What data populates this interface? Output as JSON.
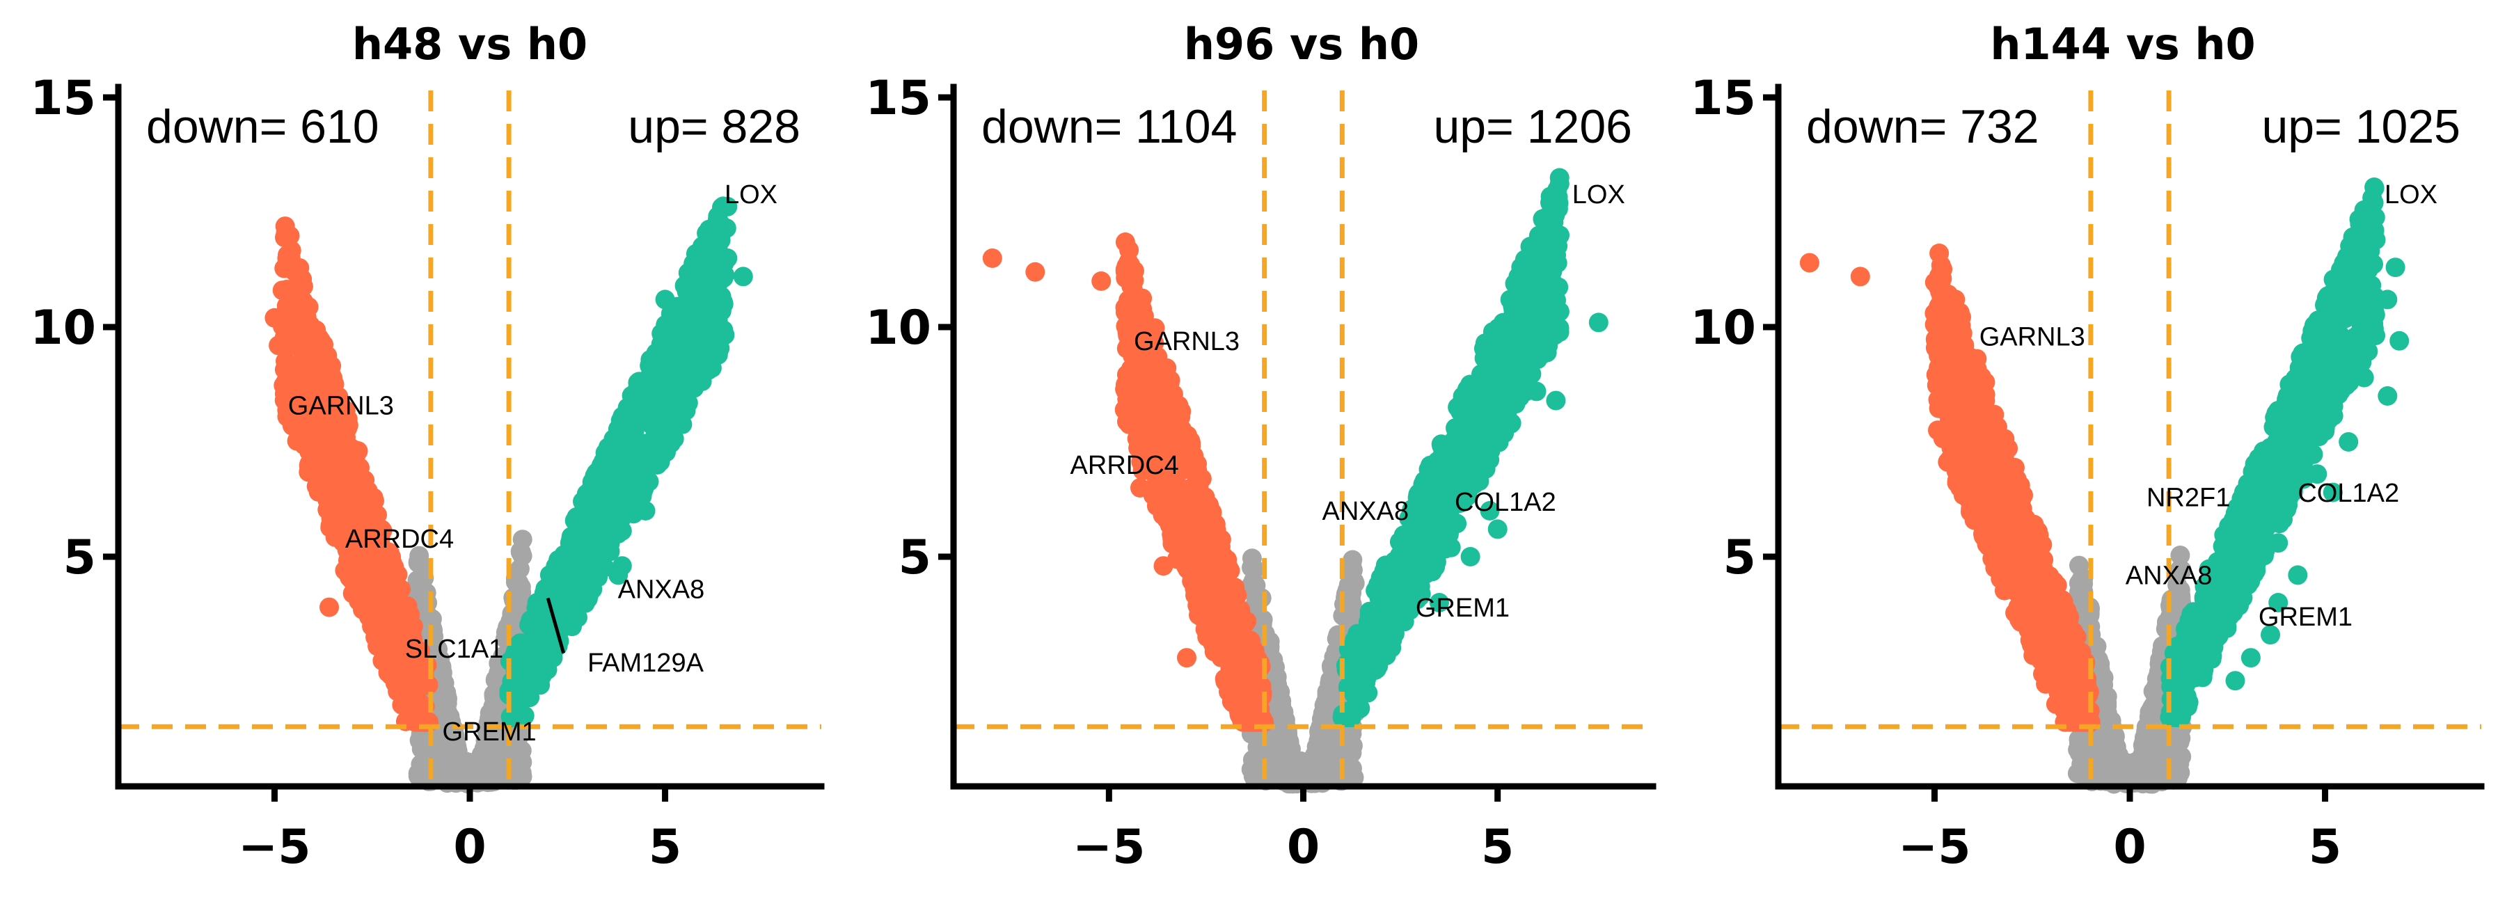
{
  "colors": {
    "down": "#ff6b42",
    "up": "#1dbf9a",
    "ns": "#a6a6a6",
    "threshold": "#f5a623",
    "axis": "#000000"
  },
  "chart_data": [
    {
      "type": "scatter",
      "title": "h48 vs h0",
      "xlabel": "",
      "ylabel": "",
      "xlim": [
        -9,
        9
      ],
      "ylim": [
        0,
        15
      ],
      "xticks": [
        -5,
        0,
        5
      ],
      "yticks": [
        5,
        10,
        15
      ],
      "grid": false,
      "thresholds": {
        "logfc": [
          -1,
          1
        ],
        "y": 1.3
      },
      "down_label": "down= 610",
      "up_label": "up= 828",
      "shape": {
        "down_max_x": -4.8,
        "down_max_y": 10.8,
        "up_max_x": 6.6,
        "up_max_y": 11.8
      },
      "extreme_points": {
        "down": [
          [
            -4.8,
            10.8
          ],
          [
            -5.0,
            10.2
          ],
          [
            -4.6,
            10.0
          ],
          [
            -4.9,
            9.6
          ],
          [
            -4.4,
            9.6
          ],
          [
            -3.6,
            3.9
          ],
          [
            -3.0,
            4.2
          ],
          [
            -3.2,
            4.7
          ]
        ],
        "up": [
          [
            6.2,
            11.8
          ],
          [
            6.6,
            11.5
          ],
          [
            7.0,
            11.1
          ],
          [
            6.5,
            10.5
          ],
          [
            5.5,
            10.9
          ],
          [
            5.0,
            10.6
          ],
          [
            5.5,
            8.7
          ],
          [
            4.8,
            7.0
          ],
          [
            4.1,
            6.7
          ],
          [
            4.5,
            6.0
          ],
          [
            3.8,
            5.5
          ],
          [
            3.8,
            4.6
          ],
          [
            3.9,
            4.8
          ]
        ]
      },
      "annotations": [
        {
          "text": "LOX",
          "x": 7.2,
          "y": 12.7
        },
        {
          "text": "GARNL3",
          "x": -3.3,
          "y": 8.1
        },
        {
          "text": "ARRDC4",
          "x": -1.8,
          "y": 5.2
        },
        {
          "text": "ANXA8",
          "x": 4.9,
          "y": 4.1
        },
        {
          "text": "SLC1A1",
          "x": -0.4,
          "y": 2.8
        },
        {
          "text": "FAM129A",
          "x": 4.5,
          "y": 2.5
        },
        {
          "text": "GREM1",
          "x": 0.5,
          "y": 1.0
        }
      ],
      "leaders": [
        {
          "from": [
            2.4,
            2.9
          ],
          "to": [
            2.0,
            4.1
          ]
        }
      ]
    },
    {
      "type": "scatter",
      "title": "h96 vs h0",
      "xlabel": "",
      "ylabel": "",
      "xlim": [
        -9,
        9
      ],
      "ylim": [
        0,
        15
      ],
      "xticks": [
        -5,
        0,
        5
      ],
      "yticks": [
        5,
        10,
        15
      ],
      "grid": false,
      "thresholds": {
        "logfc": [
          -1,
          1
        ],
        "y": 1.3
      },
      "down_label": "down= 1104",
      "up_label": "up= 1206",
      "shape": {
        "down_max_x": -4.6,
        "down_max_y": 10.4,
        "up_max_x": 6.6,
        "up_max_y": 12.0
      },
      "extreme_points": {
        "down": [
          [
            -8.0,
            11.5
          ],
          [
            -6.9,
            11.2
          ],
          [
            -5.2,
            11.0
          ],
          [
            -4.2,
            6.5
          ],
          [
            -4.6,
            8.2
          ],
          [
            -3.6,
            4.8
          ],
          [
            -3.0,
            2.8
          ]
        ],
        "up": [
          [
            6.6,
            12.0
          ],
          [
            6.4,
            11.0
          ],
          [
            6.0,
            10.9
          ],
          [
            7.6,
            10.1
          ],
          [
            5.5,
            9.5
          ],
          [
            6.0,
            8.6
          ],
          [
            6.5,
            8.4
          ],
          [
            4.5,
            7.0
          ],
          [
            4.8,
            6.0
          ],
          [
            5.0,
            5.6
          ],
          [
            3.8,
            5.2
          ],
          [
            3.5,
            4.0
          ],
          [
            4.3,
            5.0
          ]
        ]
      },
      "annotations": [
        {
          "text": "LOX",
          "x": 7.6,
          "y": 12.7
        },
        {
          "text": "GARNL3",
          "x": -3.0,
          "y": 9.5
        },
        {
          "text": "ARRDC4",
          "x": -4.6,
          "y": 6.8
        },
        {
          "text": "ANXA8",
          "x": 1.6,
          "y": 5.8
        },
        {
          "text": "COL1A2",
          "x": 5.2,
          "y": 6.0
        },
        {
          "text": "GREM1",
          "x": 4.1,
          "y": 3.7
        }
      ],
      "leaders": []
    },
    {
      "type": "scatter",
      "title": "h144 vs h0",
      "xlabel": "",
      "ylabel": "",
      "xlim": [
        -9,
        9
      ],
      "ylim": [
        0,
        15
      ],
      "xticks": [
        -5,
        0,
        5
      ],
      "yticks": [
        5,
        10,
        15
      ],
      "grid": false,
      "thresholds": {
        "logfc": [
          -1,
          1
        ],
        "y": 1.3
      },
      "down_label": "down= 732",
      "up_label": "up= 1025",
      "shape": {
        "down_max_x": -5.0,
        "down_max_y": 10.2,
        "up_max_x": 6.3,
        "up_max_y": 11.9
      },
      "extreme_points": {
        "down": [
          [
            -8.2,
            11.4
          ],
          [
            -6.9,
            11.1
          ],
          [
            -5.0,
            10.3
          ],
          [
            -4.7,
            8.5
          ],
          [
            -4.5,
            7.0
          ]
        ],
        "up": [
          [
            6.3,
            11.9
          ],
          [
            6.8,
            11.3
          ],
          [
            6.6,
            10.6
          ],
          [
            5.0,
            10.5
          ],
          [
            6.9,
            9.7
          ],
          [
            6.0,
            8.9
          ],
          [
            6.6,
            8.5
          ],
          [
            5.6,
            7.5
          ],
          [
            5.2,
            6.4
          ],
          [
            4.8,
            6.8
          ],
          [
            3.8,
            5.3
          ],
          [
            4.3,
            4.6
          ],
          [
            3.8,
            4.0
          ],
          [
            3.6,
            3.3
          ],
          [
            3.1,
            2.8
          ],
          [
            2.7,
            2.3
          ]
        ]
      },
      "annotations": [
        {
          "text": "LOX",
          "x": 7.2,
          "y": 12.7
        },
        {
          "text": "GARNL3",
          "x": -2.5,
          "y": 9.6
        },
        {
          "text": "NR2F1",
          "x": 1.5,
          "y": 6.1
        },
        {
          "text": "COL1A2",
          "x": 5.6,
          "y": 6.2
        },
        {
          "text": "ANXA8",
          "x": 1.0,
          "y": 4.4
        },
        {
          "text": "GREM1",
          "x": 4.5,
          "y": 3.5
        }
      ],
      "leaders": []
    }
  ]
}
